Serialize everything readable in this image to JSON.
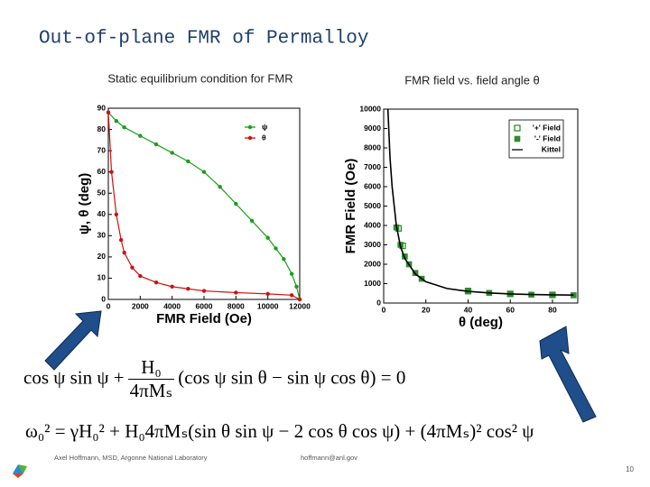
{
  "title": "Out-of-plane FMR of Permalloy",
  "equations": {
    "static": {
      "lhs": "cos ψ sin ψ +",
      "num": "H₀",
      "den": "4πMₛ",
      "rhs": "(cos ψ sin θ − sin ψ cos θ) = 0"
    },
    "frequency": "ω₀² = γH₀² + H₀4πMₛ(sin θ sin ψ − 2 cos θ cos ψ) + (4πMₛ)² cos² ψ"
  },
  "footer": {
    "author": "Axel Hoffmann, MSD, Argonne National Laboratory",
    "email": "hoffmann@anl.gov",
    "page": "10"
  },
  "chart_data": [
    {
      "type": "line",
      "title": "Static equilibrium condition for FMR",
      "x_label": "FMR Field (Oe)",
      "y_label": "ψ, θ (deg)",
      "xlim": [
        0,
        12000
      ],
      "xticks": [
        0,
        2000,
        4000,
        6000,
        8000,
        10000,
        12000
      ],
      "ylim": [
        0,
        90
      ],
      "yticks": [
        0,
        10,
        20,
        30,
        40,
        50,
        60,
        70,
        80,
        90
      ],
      "legend": "upper right",
      "legend_frame": false,
      "series": [
        {
          "name": "ψ",
          "color": "#1a9e1a",
          "marker": "circle",
          "x": [
            0,
            500,
            1000,
            2000,
            3000,
            4000,
            5000,
            6000,
            7000,
            8000,
            9000,
            10000,
            10500,
            11000,
            11500,
            11800,
            12000
          ],
          "values": [
            88,
            84,
            81,
            77,
            73,
            69,
            65,
            60,
            53,
            45,
            37,
            29,
            24,
            19,
            12,
            6,
            0
          ]
        },
        {
          "name": "θ",
          "color": "#d01010",
          "marker": "circle",
          "x": [
            0,
            200,
            500,
            800,
            1000,
            1500,
            2000,
            3000,
            4000,
            5000,
            6000,
            8000,
            10000,
            11500,
            12000
          ],
          "values": [
            88,
            60,
            40,
            28,
            22,
            15,
            11,
            8,
            6,
            5,
            4,
            3.2,
            2.6,
            2,
            0
          ]
        }
      ]
    },
    {
      "type": "line",
      "title": "FMR field vs. field angle θ",
      "x_label": "θ (deg)",
      "y_label": "FMR Field (Oe)",
      "xlim": [
        0,
        92
      ],
      "xticks": [
        0,
        20,
        40,
        60,
        80
      ],
      "ylim": [
        0,
        10000
      ],
      "yticks": [
        0,
        1000,
        2000,
        3000,
        4000,
        5000,
        6000,
        7000,
        8000,
        9000,
        10000
      ],
      "legend": "upper right",
      "legend_frame": true,
      "series": [
        {
          "name": "'+' Field",
          "color": "#1a8c1a",
          "marker": "square-open",
          "x": [
            7,
            9,
            40,
            60,
            80
          ],
          "values": [
            3850,
            2950,
            620,
            470,
            420
          ]
        },
        {
          "name": "'-' Field",
          "color": "#2e8b2e",
          "marker": "square",
          "x": [
            6,
            8,
            10,
            12,
            15,
            18,
            40,
            50,
            60,
            70,
            80,
            90
          ],
          "values": [
            3900,
            3000,
            2400,
            2000,
            1550,
            1250,
            600,
            520,
            460,
            430,
            410,
            400
          ]
        },
        {
          "name": "Kittel",
          "color": "#000000",
          "marker": "none",
          "x": [
            2,
            3,
            4,
            6,
            8,
            10,
            15,
            20,
            30,
            40,
            50,
            60,
            70,
            80,
            90
          ],
          "values": [
            10000,
            7500,
            6000,
            4000,
            2900,
            2300,
            1500,
            1100,
            750,
            600,
            520,
            470,
            440,
            420,
            410
          ]
        }
      ]
    }
  ]
}
